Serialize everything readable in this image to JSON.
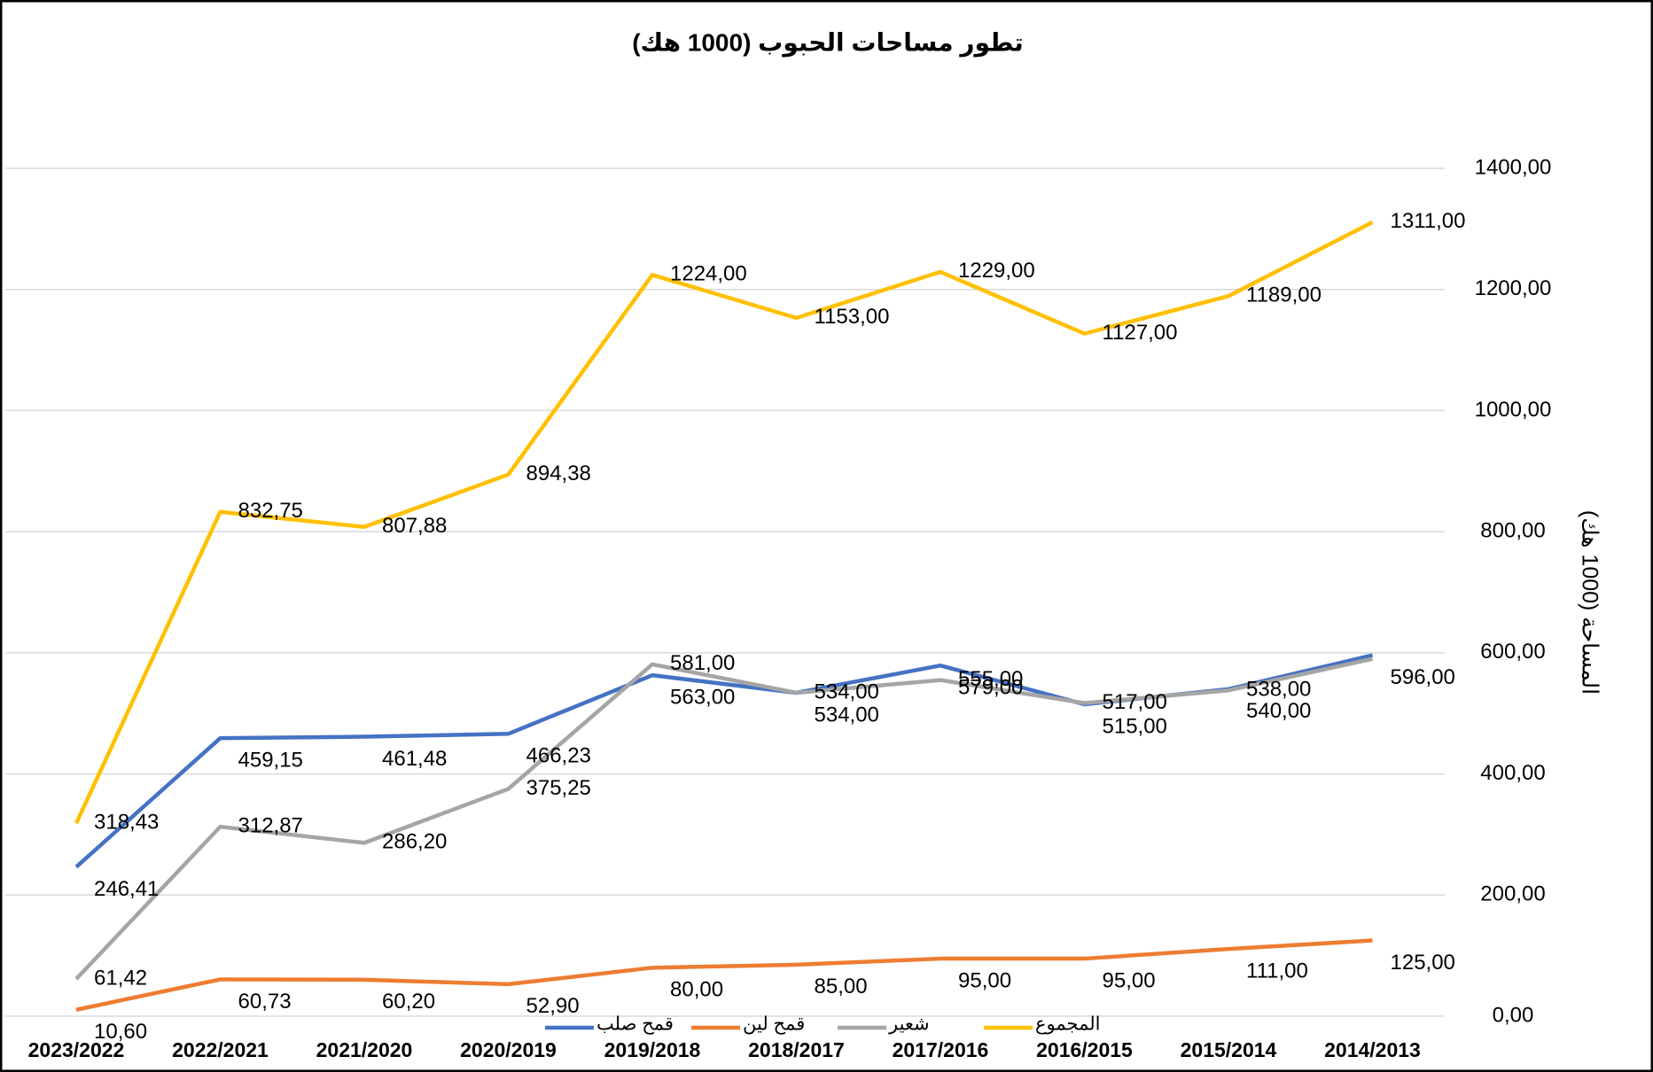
{
  "chart_data": {
    "type": "line",
    "title": "تطور مساحات الحبوب (1000 هك)",
    "y_axis_title": "المساحة (1000 هك)",
    "categories": [
      "2023/2022",
      "2022/2021",
      "2021/2020",
      "2020/2019",
      "2019/2018",
      "2018/2017",
      "2017/2016",
      "2016/2015",
      "2015/2014",
      "2014/2013"
    ],
    "ylim": [
      0,
      1400
    ],
    "yticks": [
      {
        "value": 0,
        "label": "0,00"
      },
      {
        "value": 200,
        "label": "200,00"
      },
      {
        "value": 400,
        "label": "400,00"
      },
      {
        "value": 600,
        "label": "600,00"
      },
      {
        "value": 800,
        "label": "800,00"
      },
      {
        "value": 1000,
        "label": "1000,00"
      },
      {
        "value": 1200,
        "label": "1200,00"
      },
      {
        "value": 1400,
        "label": "1400,00"
      }
    ],
    "grid": true,
    "legend": "bottom",
    "series": [
      {
        "name": "قمح صلب",
        "color": "#4472c4",
        "values": [
          246.41,
          459.15,
          461.48,
          466.23,
          563,
          534,
          579,
          515,
          540,
          596
        ],
        "value_labels": [
          "246,41",
          "459,15",
          "461,48",
          "466,23",
          "563,00",
          "534,00",
          "579,00",
          "515,00",
          "540,00",
          "596,00"
        ]
      },
      {
        "name": "قمح لين",
        "color": "#ed7d31",
        "values": [
          10.6,
          60.73,
          60.2,
          52.9,
          80,
          85,
          95,
          95,
          111,
          125
        ],
        "value_labels": [
          "10,60",
          "60,73",
          "60,20",
          "52,90",
          "80,00",
          "85,00",
          "95,00",
          "95,00",
          "111,00",
          "125,00"
        ]
      },
      {
        "name": "شعير",
        "color": "#a5a5a5",
        "values": [
          61.42,
          312.87,
          286.2,
          375.25,
          581,
          534,
          555,
          517,
          538,
          590
        ],
        "value_labels": [
          "61,42",
          "312,87",
          "286,20",
          "375,25",
          "581,00",
          "534,00",
          "555,00",
          "517,00",
          "538,00",
          null
        ]
      },
      {
        "name": "المجموع",
        "color": "#ffc000",
        "values": [
          318.43,
          832.75,
          807.88,
          894.38,
          1224,
          1153,
          1229,
          1127,
          1189,
          1311
        ],
        "value_labels": [
          "318,43",
          "832,75",
          "807,88",
          "894,38",
          "1224,00",
          "1153,00",
          "1229,00",
          "1127,00",
          "1189,00",
          "1311,00"
        ]
      }
    ]
  }
}
